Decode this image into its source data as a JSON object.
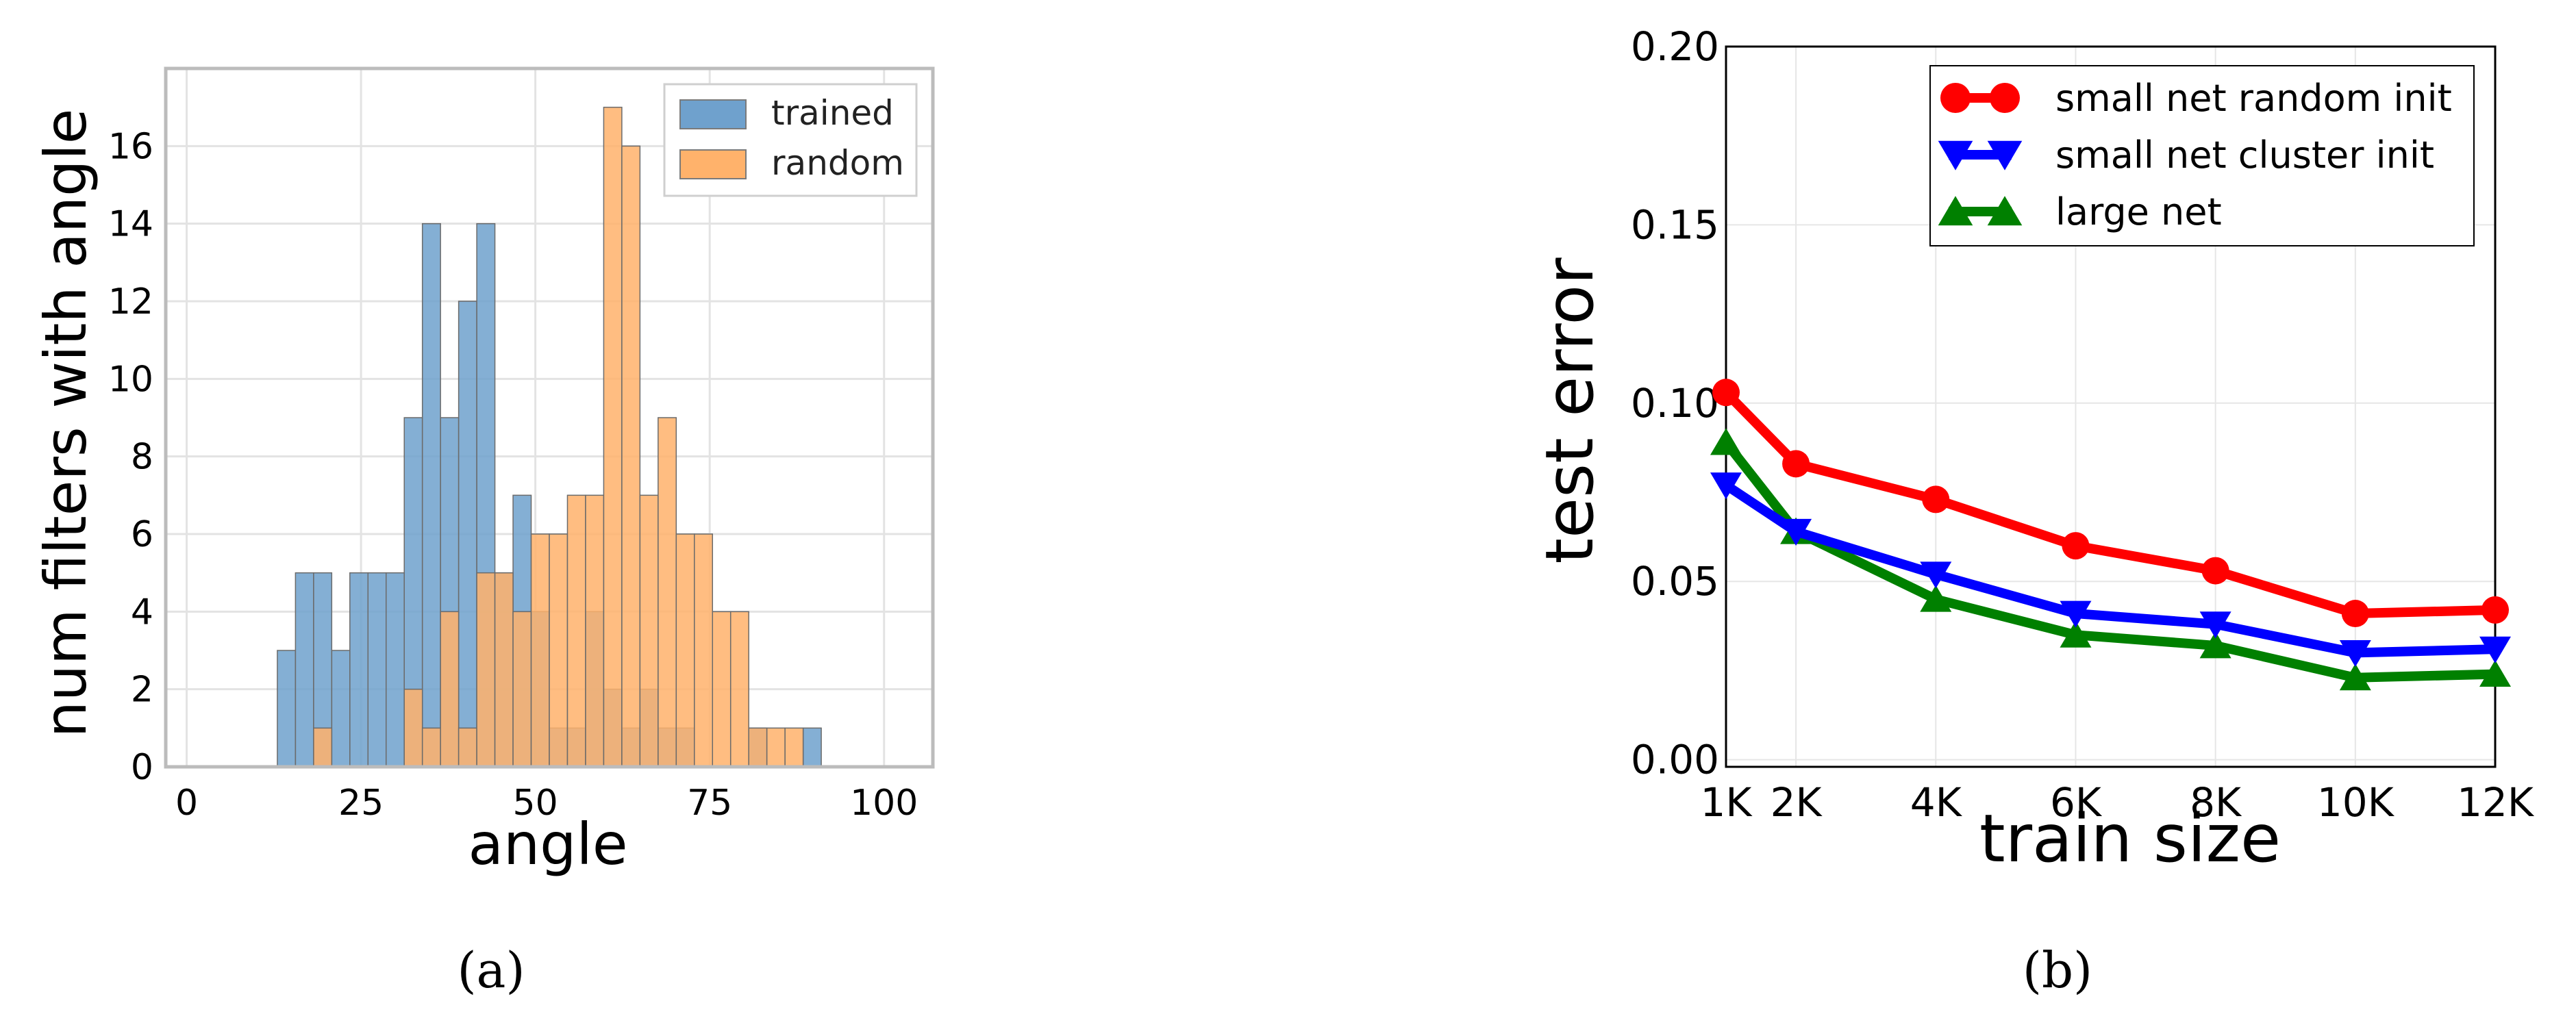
{
  "figure": {
    "caption_a": "(a)",
    "caption_b": "(b)"
  },
  "chart_data": [
    {
      "type": "bar",
      "subtype": "histogram",
      "xlabel": "angle",
      "ylabel": "num filters with angle",
      "xlim": [
        -3,
        107
      ],
      "ylim": [
        0,
        18
      ],
      "xticks": [
        0,
        25,
        50,
        75,
        100
      ],
      "xtick_labels": [
        "0",
        "25",
        "50",
        "75",
        "100"
      ],
      "yticks": [
        0,
        2,
        4,
        6,
        8,
        10,
        12,
        14,
        16
      ],
      "ytick_labels": [
        "0",
        "2",
        "4",
        "6",
        "8",
        "10",
        "12",
        "14",
        "16"
      ],
      "grid": true,
      "legend_position": "top-right",
      "bin_width": 2.6,
      "bin_start": 13,
      "series": [
        {
          "name": "trained",
          "color": "#6fa1cd",
          "bins": [
            {
              "start": 13.0,
              "count": 3
            },
            {
              "start": 15.6,
              "count": 5
            },
            {
              "start": 18.2,
              "count": 5
            },
            {
              "start": 20.8,
              "count": 3
            },
            {
              "start": 23.4,
              "count": 5
            },
            {
              "start": 26.0,
              "count": 5
            },
            {
              "start": 28.6,
              "count": 5
            },
            {
              "start": 31.2,
              "count": 9
            },
            {
              "start": 33.8,
              "count": 14
            },
            {
              "start": 36.4,
              "count": 9
            },
            {
              "start": 39.0,
              "count": 12
            },
            {
              "start": 41.6,
              "count": 14
            },
            {
              "start": 44.2,
              "count": 5
            },
            {
              "start": 46.8,
              "count": 7
            },
            {
              "start": 49.4,
              "count": 4
            },
            {
              "start": 52.0,
              "count": 1
            },
            {
              "start": 54.6,
              "count": 1
            },
            {
              "start": 57.2,
              "count": 4
            },
            {
              "start": 59.8,
              "count": 2
            },
            {
              "start": 62.4,
              "count": 1
            },
            {
              "start": 65.0,
              "count": 2
            },
            {
              "start": 67.6,
              "count": 1
            },
            {
              "start": 70.2,
              "count": 1
            },
            {
              "start": 80.6,
              "count": 1
            },
            {
              "start": 88.4,
              "count": 1
            }
          ]
        },
        {
          "name": "random",
          "color": "#ffb26b",
          "bins": [
            {
              "start": 18.2,
              "count": 1
            },
            {
              "start": 31.2,
              "count": 2
            },
            {
              "start": 33.8,
              "count": 1
            },
            {
              "start": 36.4,
              "count": 4
            },
            {
              "start": 39.0,
              "count": 1
            },
            {
              "start": 41.6,
              "count": 5
            },
            {
              "start": 44.2,
              "count": 5
            },
            {
              "start": 46.8,
              "count": 4
            },
            {
              "start": 49.4,
              "count": 6
            },
            {
              "start": 52.0,
              "count": 6
            },
            {
              "start": 54.6,
              "count": 7
            },
            {
              "start": 57.2,
              "count": 7
            },
            {
              "start": 59.8,
              "count": 17
            },
            {
              "start": 62.4,
              "count": 16
            },
            {
              "start": 65.0,
              "count": 7
            },
            {
              "start": 67.6,
              "count": 9
            },
            {
              "start": 70.2,
              "count": 6
            },
            {
              "start": 72.8,
              "count": 6
            },
            {
              "start": 75.4,
              "count": 4
            },
            {
              "start": 78.0,
              "count": 4
            },
            {
              "start": 80.6,
              "count": 1
            },
            {
              "start": 83.2,
              "count": 1
            },
            {
              "start": 85.8,
              "count": 1
            }
          ]
        }
      ]
    },
    {
      "type": "line",
      "xlabel": "train size",
      "ylabel": "test error",
      "xlim": [
        1000,
        12000
      ],
      "ylim": [
        -0.002,
        0.2
      ],
      "x": [
        1000,
        2000,
        4000,
        6000,
        8000,
        10000,
        12000
      ],
      "xtick_labels": [
        "1K",
        "2K",
        "4K",
        "6K",
        "8K",
        "10K",
        "12K"
      ],
      "yticks": [
        0.0,
        0.05,
        0.1,
        0.15,
        0.2
      ],
      "ytick_labels": [
        "0.00",
        "0.05",
        "0.10",
        "0.15",
        "0.20"
      ],
      "grid": true,
      "legend_position": "top-right",
      "series": [
        {
          "name": "small net random init",
          "color": "#ff0000",
          "marker": "circle",
          "values": [
            0.103,
            0.083,
            0.073,
            0.06,
            0.053,
            0.041,
            0.042
          ]
        },
        {
          "name": "small net cluster init",
          "color": "#0000ff",
          "marker": "triangle-down",
          "values": [
            0.077,
            0.064,
            0.052,
            0.041,
            0.038,
            0.03,
            0.031
          ]
        },
        {
          "name": "large net",
          "color": "#008000",
          "marker": "triangle-up",
          "values": [
            0.089,
            0.064,
            0.045,
            0.035,
            0.032,
            0.023,
            0.024
          ]
        }
      ]
    }
  ]
}
